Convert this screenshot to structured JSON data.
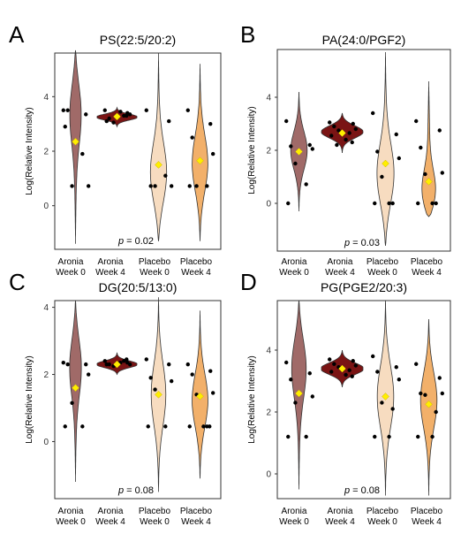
{
  "colors": {
    "aronia_week0": "#a06a68",
    "aronia_week4": "#7a1414",
    "placebo_week0": "#f7dcc0",
    "placebo_week4": "#f2b06a",
    "mean_marker": "#ffee00",
    "points": "#000000"
  },
  "chart_data": [
    {
      "type": "violin",
      "panel_letter": "A",
      "title": "PS(22:5/20:2)",
      "ylabel": "Log(Relative Intensity)",
      "ylim": [
        -1.6,
        5.6
      ],
      "yticks": [
        0,
        2,
        4
      ],
      "categories": [
        "Aronia\nWeek 0",
        "Aronia\nWeek 4",
        "Placebo\nWeek 0",
        "Placebo\nWeek 4"
      ],
      "pvalue": "p = 0.02",
      "groups": [
        {
          "min": -1.4,
          "max": 5.7,
          "mode": 3.5,
          "peak": 0.09,
          "mean": 2.35,
          "points": [
            3.5,
            3.35,
            3.5,
            0.72,
            0.72,
            1.9,
            2.9
          ]
        },
        {
          "min": 2.9,
          "max": 3.6,
          "mode": 3.25,
          "peak": 0.34,
          "mean": 3.27,
          "points": [
            3.5,
            3.4,
            3.2,
            3.35,
            3.05,
            3.3,
            3.1,
            3.45,
            3.3
          ]
        },
        {
          "min": -1.3,
          "max": 5.6,
          "mode": 1.1,
          "peak": 0.13,
          "mean": 1.5,
          "points": [
            3.5,
            3.1,
            0.72,
            0.72,
            0.72,
            1.1
          ]
        },
        {
          "min": -1.3,
          "max": 5.2,
          "mode": 1.5,
          "peak": 0.12,
          "mean": 1.65,
          "points": [
            3.5,
            3.0,
            2.5,
            1.9,
            0.72,
            0.72,
            0.72
          ]
        }
      ]
    },
    {
      "type": "violin",
      "panel_letter": "B",
      "title": "PA(24:0/PGF2)",
      "ylabel": "Log(Relative Intensity)",
      "ylim": [
        -1.8,
        5.8
      ],
      "yticks": [
        0,
        2,
        4
      ],
      "categories": [
        "Aronia\nWeek 0",
        "Aronia\nWeek 4",
        "Placebo\nWeek 0",
        "Placebo\nWeek 4"
      ],
      "pvalue": "p = 0.03",
      "groups": [
        {
          "min": -0.3,
          "max": 4.2,
          "mode": 2.0,
          "peak": 0.12,
          "mean": 1.95,
          "points": [
            3.1,
            2.2,
            2.15,
            2.05,
            1.5,
            0.72,
            0.0
          ]
        },
        {
          "min": 1.9,
          "max": 3.4,
          "mode": 2.7,
          "peak": 0.33,
          "mean": 2.65,
          "points": [
            3.05,
            3.0,
            2.9,
            2.8,
            2.75,
            2.65,
            2.55,
            2.4,
            2.3,
            2.2
          ]
        },
        {
          "min": -1.6,
          "max": 5.7,
          "mode": 1.0,
          "peak": 0.13,
          "mean": 1.5,
          "points": [
            3.4,
            2.6,
            1.95,
            1.7,
            1.0,
            0.0,
            0.0,
            0.0
          ]
        },
        {
          "min": -0.5,
          "max": 4.6,
          "mode": 0.3,
          "peak": 0.13,
          "mean": 0.82,
          "points": [
            3.1,
            2.75,
            2.1,
            1.15,
            1.1,
            0.0,
            0.0,
            0.0
          ]
        }
      ]
    },
    {
      "type": "violin",
      "panel_letter": "C",
      "title": "DG(20:5/13:0)",
      "ylabel": "Log(Relative Intensity)",
      "ylim": [
        -1.7,
        4.2
      ],
      "yticks": [
        0,
        2,
        4
      ],
      "categories": [
        "Aronia\nWeek 0",
        "Aronia\nWeek 4",
        "Placebo\nWeek 0",
        "Placebo\nWeek 4"
      ],
      "pvalue": "p = 0.08",
      "groups": [
        {
          "min": -1.2,
          "max": 4.2,
          "mode": 2.3,
          "peak": 0.09,
          "mean": 1.6,
          "points": [
            2.35,
            2.3,
            2.3,
            2.0,
            1.15,
            0.45,
            0.45
          ]
        },
        {
          "min": 2.0,
          "max": 2.65,
          "mode": 2.3,
          "peak": 0.34,
          "mean": 2.3,
          "points": [
            2.4,
            2.35,
            2.3,
            2.3,
            2.25,
            2.4,
            2.3,
            2.35,
            2.45
          ]
        },
        {
          "min": -1.5,
          "max": 4.3,
          "mode": 1.4,
          "peak": 0.11,
          "mean": 1.4,
          "points": [
            2.45,
            2.3,
            1.9,
            1.8,
            1.55,
            0.45,
            0.45
          ]
        },
        {
          "min": -1.1,
          "max": 3.9,
          "mode": 1.2,
          "peak": 0.12,
          "mean": 1.35,
          "points": [
            2.3,
            2.1,
            2.0,
            1.45,
            1.4,
            0.45,
            0.45,
            0.45,
            0.45
          ]
        }
      ]
    },
    {
      "type": "violin",
      "panel_letter": "D",
      "title": "PG(PGE2/20:3)",
      "ylabel": "Log(Relative Intensity)",
      "ylim": [
        -0.8,
        5.6
      ],
      "yticks": [
        0,
        2,
        4
      ],
      "categories": [
        "Aronia\nWeek 0",
        "Aronia\nWeek 4",
        "Placebo\nWeek 0",
        "Placebo\nWeek 4"
      ],
      "pvalue": "p = 0.08",
      "groups": [
        {
          "min": -0.5,
          "max": 5.6,
          "mode": 3.5,
          "peak": 0.11,
          "mean": 2.6,
          "points": [
            3.6,
            3.25,
            3.05,
            2.5,
            2.3,
            1.2,
            1.2
          ]
        },
        {
          "min": 2.8,
          "max": 4.0,
          "mode": 3.4,
          "peak": 0.34,
          "mean": 3.4,
          "points": [
            3.7,
            3.65,
            3.55,
            3.5,
            3.45,
            3.35,
            3.3,
            3.2,
            3.15
          ]
        },
        {
          "min": -0.7,
          "max": 5.6,
          "mode": 2.5,
          "peak": 0.12,
          "mean": 2.5,
          "points": [
            3.8,
            3.45,
            3.3,
            3.05,
            2.3,
            2.1,
            1.2,
            1.2
          ]
        },
        {
          "min": -0.7,
          "max": 5.0,
          "mode": 2.4,
          "peak": 0.12,
          "mean": 2.25,
          "points": [
            3.55,
            3.1,
            2.6,
            2.6,
            2.55,
            2.0,
            1.2,
            1.2
          ]
        }
      ]
    }
  ]
}
